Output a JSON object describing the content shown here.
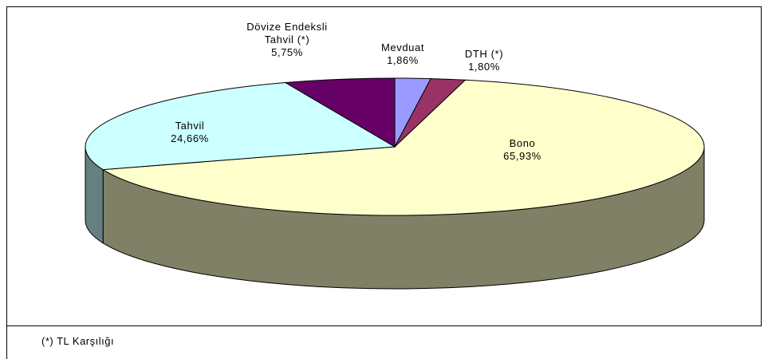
{
  "chart_data": {
    "type": "pie3d",
    "categories": [
      "Mevduat",
      "DTH (*)",
      "Bono",
      "Tahvil",
      "Dövize Endeksli Tahvil (*)"
    ],
    "values": [
      1.86,
      1.8,
      65.93,
      24.66,
      5.75
    ],
    "value_labels": [
      "1,86%",
      "1,80%",
      "65,93%",
      "24,66%",
      "5,75%"
    ],
    "colors": [
      "#9999ff",
      "#993366",
      "#ffffcc",
      "#ccffff",
      "#660066"
    ],
    "footnote": "(*) TL Karşılığı"
  }
}
